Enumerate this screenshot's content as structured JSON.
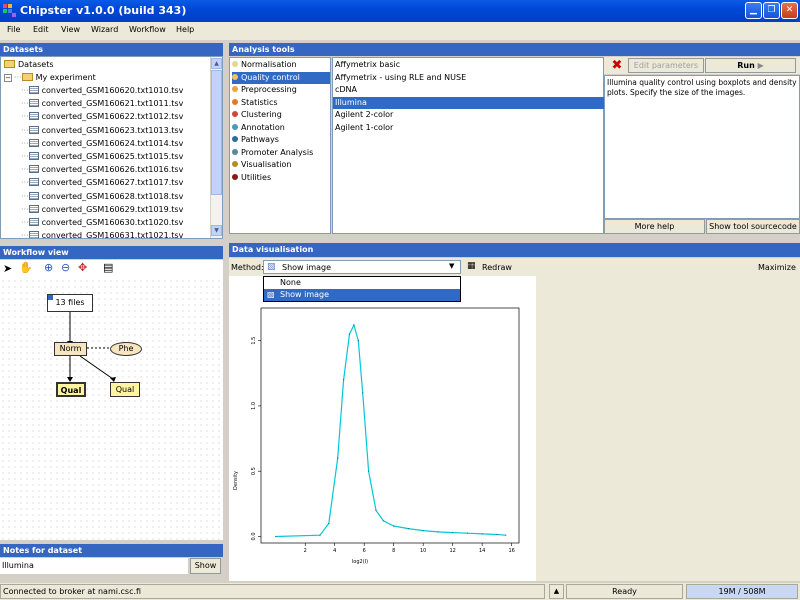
{
  "window": {
    "title": "Chipster v1.0.0 (build 343)"
  },
  "menu": [
    "File",
    "Edit",
    "View",
    "Wizard",
    "Workflow",
    "Help"
  ],
  "datasets": {
    "header": "Datasets",
    "root": "Datasets",
    "experiment": "My experiment",
    "files": [
      "converted_GSM160620.txt1010.tsv",
      "converted_GSM160621.txt1011.tsv",
      "converted_GSM160622.txt1012.tsv",
      "converted_GSM160623.txt1013.tsv",
      "converted_GSM160624.txt1014.tsv",
      "converted_GSM160625.txt1015.tsv",
      "converted_GSM160626.txt1016.tsv",
      "converted_GSM160627.txt1017.tsv",
      "converted_GSM160628.txt1018.tsv",
      "converted_GSM160629.txt1019.tsv",
      "converted_GSM160630.txt1020.tsv",
      "converted_GSM160631.txt1021.tsv"
    ]
  },
  "analysis": {
    "header": "Analysis tools",
    "categories": [
      {
        "label": "Normalisation",
        "color": "#e8d48a"
      },
      {
        "label": "Quality control",
        "color": "#f0c35a",
        "selected": true
      },
      {
        "label": "Preprocessing",
        "color": "#e8a33a"
      },
      {
        "label": "Statistics",
        "color": "#e07b2a"
      },
      {
        "label": "Clustering",
        "color": "#d2453a"
      },
      {
        "label": "Annotation",
        "color": "#4a9ab8"
      },
      {
        "label": "Pathways",
        "color": "#2a6d9a"
      },
      {
        "label": "Promoter Analysis",
        "color": "#5a8a9a"
      },
      {
        "label": "Visualisation",
        "color": "#b09020"
      },
      {
        "label": "Utilities",
        "color": "#8b1a1a"
      }
    ],
    "tools": [
      {
        "label": "Affymetrix basic"
      },
      {
        "label": "Affymetrix - using RLE and NUSE"
      },
      {
        "label": "cDNA"
      },
      {
        "label": "Illumina",
        "selected": true
      },
      {
        "label": "Agilent 2-color"
      },
      {
        "label": "Agilent 1-color"
      }
    ],
    "edit_parameters": "Edit parameters",
    "run": "Run",
    "description": "Illumina quality control using boxplots and density plots. Specify the size of the images.",
    "more_help": "More help",
    "show_source": "Show tool sourcecode"
  },
  "workflow": {
    "header": "Workflow view",
    "nodes": {
      "files": "13 files",
      "norm": "Norm",
      "phe": "Phe",
      "qual1": "Qual",
      "qual2": "Qual"
    }
  },
  "notes": {
    "header": "Notes for dataset",
    "text": "Illumina",
    "show": "Show"
  },
  "visualisation": {
    "header": "Data visualisation",
    "method_label": "Method:",
    "method_value": "Show image",
    "redraw": "Redraw",
    "maximize": "Maximize",
    "options": [
      "None",
      "Show image"
    ]
  },
  "chart_data": {
    "type": "line",
    "xlabel": "log2(I)",
    "ylabel": "Density",
    "xlim": [
      -1,
      16.5
    ],
    "ylim": [
      -0.05,
      1.75
    ],
    "xticks": [
      "2",
      "4",
      "6",
      "8",
      "10",
      "12",
      "14",
      "16"
    ],
    "yticks": [
      "0.0",
      "0.5",
      "1.0",
      "1.5"
    ],
    "series": [
      {
        "color": "#00c8d8",
        "x": [
          0,
          3,
          3.6,
          4.2,
          4.6,
          5.0,
          5.3,
          5.6,
          5.9,
          6.3,
          6.8,
          7.3,
          8,
          9,
          10,
          11,
          12,
          13,
          14,
          15,
          15.6
        ],
        "y": [
          0.0,
          0.01,
          0.1,
          0.6,
          1.2,
          1.55,
          1.62,
          1.5,
          1.1,
          0.5,
          0.2,
          0.12,
          0.08,
          0.06,
          0.045,
          0.035,
          0.03,
          0.025,
          0.02,
          0.015,
          0.01
        ]
      }
    ]
  },
  "status": {
    "connection": "Connected to broker at nami.csc.fi",
    "state": "Ready",
    "memory": "19M / 508M"
  }
}
